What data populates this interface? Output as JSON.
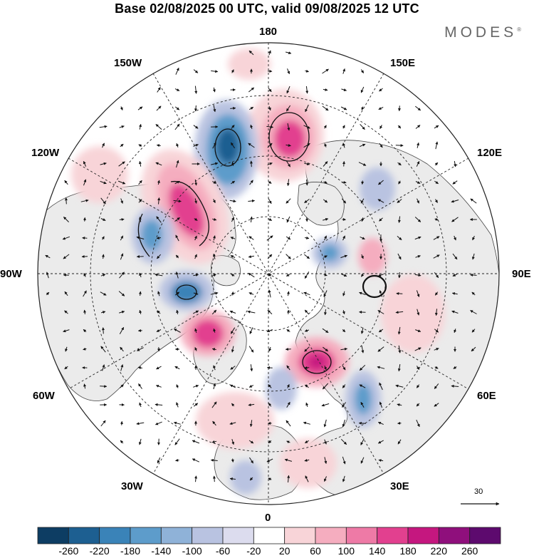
{
  "title": "Base 02/08/2025 00 UTC, valid 09/08/2025 12 UTC",
  "brand": {
    "name": "MODES",
    "mark": "®"
  },
  "longitude_labels": {
    "n180": "180",
    "w150": "150W",
    "e150": "150E",
    "w120": "120W",
    "e120": "120E",
    "w90": "90W",
    "e90": "90E",
    "w60": "60W",
    "e60": "60E",
    "w30": "30W",
    "e30": "30E",
    "zero": "0"
  },
  "wind_scale": {
    "value": "30"
  },
  "colorbar": {
    "ticks": [
      "-260",
      "-220",
      "-180",
      "-140",
      "-100",
      "-60",
      "-20",
      "20",
      "60",
      "100",
      "140",
      "180",
      "220",
      "260"
    ],
    "colors": [
      "#0d3d63",
      "#1d5f91",
      "#3a83b8",
      "#5d9ccb",
      "#8fb2d8",
      "#b9c3e1",
      "#dcdcee",
      "#ffffff",
      "#f8d4d8",
      "#f5adbf",
      "#ee7aa6",
      "#e2408f",
      "#c5177f",
      "#8f0f7c",
      "#5d0a6e"
    ]
  },
  "colors": {
    "land": "#ebebeb",
    "ocean": "#ffffff",
    "coast": "#444444",
    "grid": "#222222"
  }
}
